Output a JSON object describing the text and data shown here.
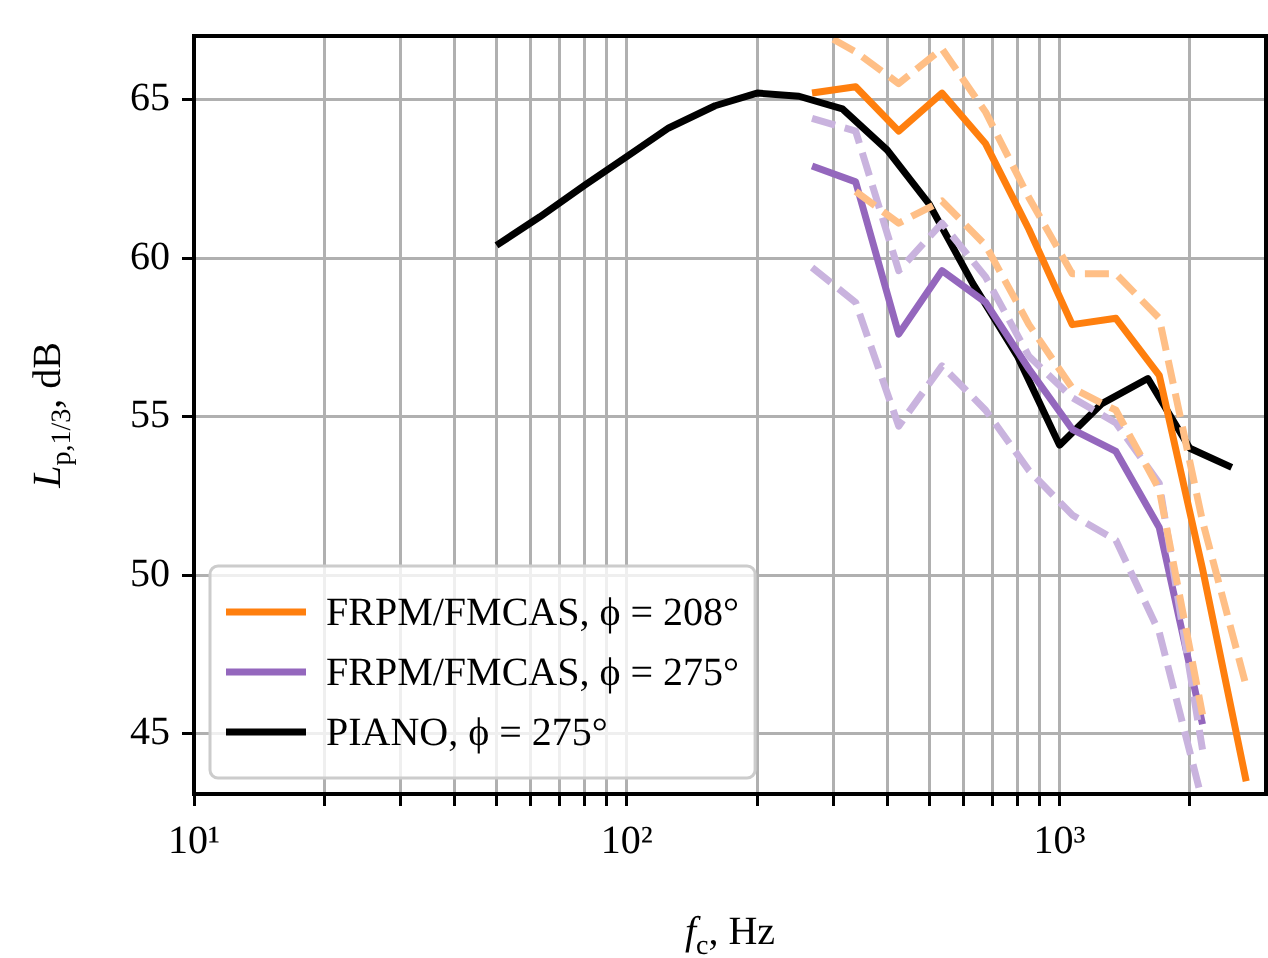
{
  "chart_data": {
    "type": "line",
    "xlabel": "f$_{c}$, Hz",
    "ylabel": "L$_{p,1/3}$, dB",
    "log": "x",
    "grid": true,
    "legend": "bottom left",
    "marker": "none",
    "xlim": [
      10,
      3000
    ],
    "ylim": [
      43.1,
      67
    ],
    "xticks": [
      {
        "value": 10,
        "label": "10¹"
      },
      {
        "value": 20,
        "label": null
      },
      {
        "value": 30,
        "label": null
      },
      {
        "value": 40,
        "label": null
      },
      {
        "value": 50,
        "label": null
      },
      {
        "value": 60,
        "label": null
      },
      {
        "value": 70,
        "label": null
      },
      {
        "value": 80,
        "label": null
      },
      {
        "value": 90,
        "label": null
      },
      {
        "value": 100,
        "label": "10²"
      },
      {
        "value": 200,
        "label": null
      },
      {
        "value": 300,
        "label": null
      },
      {
        "value": 400,
        "label": null
      },
      {
        "value": 500,
        "label": null
      },
      {
        "value": 600,
        "label": null
      },
      {
        "value": 700,
        "label": null
      },
      {
        "value": 800,
        "label": null
      },
      {
        "value": 900,
        "label": null
      },
      {
        "value": 1000,
        "label": "10³"
      },
      {
        "value": 2000,
        "label": null
      }
    ],
    "yticks": [
      45,
      50,
      55,
      60,
      65
    ],
    "series": [
      {
        "color": "#ffbf86",
        "line_style": "dashed",
        "x": [
          300,
          338,
          425,
          535,
          675,
          850,
          1070,
          1350,
          1700,
          2140,
          2700
        ],
        "values": [
          66.9,
          66.5,
          65.5,
          66.6,
          64.6,
          61.9,
          59.5,
          59.5,
          58.1,
          51.7,
          46.5
        ]
      },
      {
        "color": "#ffbf86",
        "line_style": "dashed",
        "x": [
          338,
          425,
          535,
          675,
          850,
          1070,
          1350,
          1700,
          2140
        ],
        "values": [
          62.1,
          61.1,
          61.8,
          60.4,
          57.9,
          55.9,
          55.2,
          52.7,
          45.6
        ]
      },
      {
        "color": "#c9b3de",
        "line_style": "dashed",
        "x": [
          268,
          338,
          425,
          535,
          675,
          850,
          1070,
          1350,
          1700,
          2140
        ],
        "values": [
          64.4,
          64.0,
          59.6,
          61.1,
          59.4,
          56.9,
          55.6,
          54.8,
          52.9,
          44.5
        ]
      },
      {
        "color": "#c9b3de",
        "line_style": "dashed",
        "x": [
          268,
          338,
          425,
          535,
          675,
          850,
          1070,
          1350,
          1700,
          2100
        ],
        "values": [
          59.7,
          58.6,
          54.7,
          56.6,
          55.2,
          53.3,
          51.9,
          51.1,
          48.2,
          43.3
        ]
      },
      {
        "name": "FRPM/FMCAS, ϕ = 208°",
        "color": "#ff7f0e",
        "line_style": "solid",
        "x": [
          268,
          338,
          425,
          535,
          675,
          850,
          1070,
          1350,
          1700,
          2140,
          2700
        ],
        "values": [
          65.2,
          65.4,
          64.0,
          65.2,
          63.6,
          60.9,
          57.9,
          58.1,
          56.3,
          50.2,
          43.5
        ]
      },
      {
        "name": "FRPM/FMCAS, ϕ = 275°",
        "color": "#9467bd",
        "line_style": "solid",
        "x": [
          268,
          338,
          425,
          535,
          675,
          850,
          1070,
          1350,
          1700,
          2140
        ],
        "values": [
          62.9,
          62.4,
          57.6,
          59.6,
          58.6,
          56.5,
          54.6,
          53.9,
          51.5,
          45.3
        ]
      },
      {
        "name": "PIANO, ϕ = 275°",
        "color": "#000000",
        "line_style": "solid",
        "x": [
          50,
          63,
          80,
          100,
          125,
          160,
          200,
          250,
          315,
          400,
          500,
          630,
          800,
          1000,
          1250,
          1600,
          2000,
          2500
        ],
        "values": [
          60.4,
          61.3,
          62.3,
          63.2,
          64.1,
          64.8,
          65.2,
          65.1,
          64.7,
          63.4,
          61.7,
          59.2,
          56.9,
          54.1,
          55.4,
          56.2,
          54.0,
          53.4
        ]
      }
    ]
  }
}
